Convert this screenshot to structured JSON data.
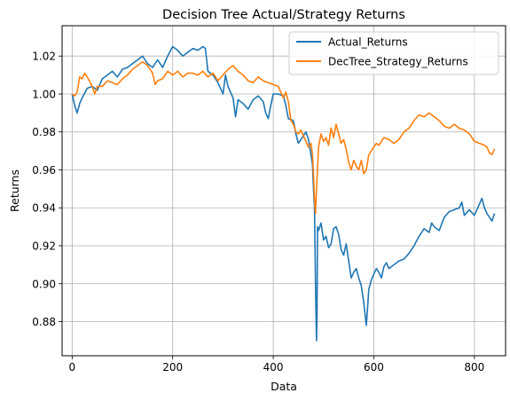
{
  "chart_data": {
    "type": "line",
    "title": "Decision Tree Actual/Strategy Returns",
    "xlabel": "Data",
    "ylabel": "Returns",
    "xlim": [
      -20,
      862
    ],
    "ylim": [
      0.862,
      1.036
    ],
    "xticks": [
      0,
      200,
      400,
      600,
      800
    ],
    "xtick_labels": [
      "0",
      "200",
      "400",
      "600",
      "800"
    ],
    "yticks": [
      0.88,
      0.9,
      0.92,
      0.94,
      0.96,
      0.98,
      1.0,
      1.02
    ],
    "ytick_labels": [
      "0.88",
      "0.90",
      "0.92",
      "0.94",
      "0.96",
      "0.98",
      "1.00",
      "1.02"
    ],
    "grid": true,
    "legend_position": "upper right",
    "series": [
      {
        "name": "Actual_Returns",
        "color": "#1f77b4",
        "points": [
          [
            0,
            1.0
          ],
          [
            5,
            0.994
          ],
          [
            10,
            0.99
          ],
          [
            15,
            0.995
          ],
          [
            20,
            0.998
          ],
          [
            30,
            1.003
          ],
          [
            40,
            1.004
          ],
          [
            50,
            1.002
          ],
          [
            60,
            1.008
          ],
          [
            70,
            1.01
          ],
          [
            80,
            1.012
          ],
          [
            90,
            1.009
          ],
          [
            100,
            1.013
          ],
          [
            110,
            1.014
          ],
          [
            120,
            1.016
          ],
          [
            130,
            1.018
          ],
          [
            140,
            1.02
          ],
          [
            150,
            1.016
          ],
          [
            160,
            1.014
          ],
          [
            170,
            1.018
          ],
          [
            180,
            1.014
          ],
          [
            190,
            1.02
          ],
          [
            200,
            1.025
          ],
          [
            210,
            1.023
          ],
          [
            220,
            1.02
          ],
          [
            230,
            1.022
          ],
          [
            240,
            1.024
          ],
          [
            250,
            1.023
          ],
          [
            260,
            1.025
          ],
          [
            265,
            1.024
          ],
          [
            270,
            1.012
          ],
          [
            280,
            1.01
          ],
          [
            290,
            1.006
          ],
          [
            300,
            1.0
          ],
          [
            305,
            1.01
          ],
          [
            310,
            1.004
          ],
          [
            320,
            0.998
          ],
          [
            325,
            0.988
          ],
          [
            330,
            0.997
          ],
          [
            340,
            0.995
          ],
          [
            350,
            0.992
          ],
          [
            360,
            0.997
          ],
          [
            370,
            0.999
          ],
          [
            380,
            0.996
          ],
          [
            385,
            0.99
          ],
          [
            390,
            0.987
          ],
          [
            395,
            0.994
          ],
          [
            400,
            1.0
          ],
          [
            410,
            1.0
          ],
          [
            420,
            0.999
          ],
          [
            425,
            0.994
          ],
          [
            430,
            0.987
          ],
          [
            440,
            0.986
          ],
          [
            445,
            0.979
          ],
          [
            450,
            0.974
          ],
          [
            460,
            0.978
          ],
          [
            465,
            0.98
          ],
          [
            470,
            0.976
          ],
          [
            475,
            0.968
          ],
          [
            478,
            0.963
          ],
          [
            480,
            0.95
          ],
          [
            482,
            0.94
          ],
          [
            484,
            0.9
          ],
          [
            486,
            0.87
          ],
          [
            487,
            0.882
          ],
          [
            488,
            0.93
          ],
          [
            490,
            0.928
          ],
          [
            495,
            0.932
          ],
          [
            500,
            0.923
          ],
          [
            505,
            0.925
          ],
          [
            510,
            0.919
          ],
          [
            515,
            0.921
          ],
          [
            520,
            0.929
          ],
          [
            525,
            0.93
          ],
          [
            530,
            0.926
          ],
          [
            535,
            0.918
          ],
          [
            540,
            0.915
          ],
          [
            545,
            0.921
          ],
          [
            550,
            0.912
          ],
          [
            555,
            0.903
          ],
          [
            560,
            0.906
          ],
          [
            565,
            0.908
          ],
          [
            570,
            0.903
          ],
          [
            575,
            0.899
          ],
          [
            580,
            0.89
          ],
          [
            583,
            0.883
          ],
          [
            585,
            0.878
          ],
          [
            587,
            0.885
          ],
          [
            590,
            0.897
          ],
          [
            595,
            0.902
          ],
          [
            600,
            0.905
          ],
          [
            605,
            0.908
          ],
          [
            610,
            0.906
          ],
          [
            615,
            0.903
          ],
          [
            620,
            0.909
          ],
          [
            625,
            0.911
          ],
          [
            630,
            0.908
          ],
          [
            640,
            0.91
          ],
          [
            650,
            0.912
          ],
          [
            660,
            0.913
          ],
          [
            670,
            0.916
          ],
          [
            680,
            0.92
          ],
          [
            690,
            0.925
          ],
          [
            700,
            0.929
          ],
          [
            710,
            0.927
          ],
          [
            715,
            0.932
          ],
          [
            720,
            0.93
          ],
          [
            730,
            0.928
          ],
          [
            740,
            0.935
          ],
          [
            750,
            0.938
          ],
          [
            760,
            0.939
          ],
          [
            770,
            0.94
          ],
          [
            775,
            0.943
          ],
          [
            780,
            0.936
          ],
          [
            790,
            0.939
          ],
          [
            800,
            0.936
          ],
          [
            810,
            0.942
          ],
          [
            815,
            0.945
          ],
          [
            820,
            0.94
          ],
          [
            825,
            0.937
          ],
          [
            830,
            0.935
          ],
          [
            835,
            0.933
          ],
          [
            840,
            0.937
          ]
        ]
      },
      {
        "name": "DecTree_Strategy_Returns",
        "color": "#ff7f0e",
        "points": [
          [
            0,
            1.0
          ],
          [
            5,
            0.999
          ],
          [
            10,
            1.001
          ],
          [
            15,
            1.009
          ],
          [
            20,
            1.008
          ],
          [
            25,
            1.011
          ],
          [
            30,
            1.009
          ],
          [
            40,
            1.004
          ],
          [
            45,
            1.0
          ],
          [
            50,
            1.004
          ],
          [
            60,
            1.004
          ],
          [
            70,
            1.007
          ],
          [
            80,
            1.006
          ],
          [
            90,
            1.005
          ],
          [
            100,
            1.008
          ],
          [
            110,
            1.01
          ],
          [
            120,
            1.013
          ],
          [
            130,
            1.015
          ],
          [
            140,
            1.017
          ],
          [
            150,
            1.015
          ],
          [
            160,
            1.011
          ],
          [
            165,
            1.005
          ],
          [
            170,
            1.007
          ],
          [
            180,
            1.008
          ],
          [
            190,
            1.012
          ],
          [
            200,
            1.01
          ],
          [
            210,
            1.012
          ],
          [
            220,
            1.009
          ],
          [
            230,
            1.011
          ],
          [
            240,
            1.011
          ],
          [
            250,
            1.01
          ],
          [
            260,
            1.012
          ],
          [
            270,
            1.009
          ],
          [
            280,
            1.011
          ],
          [
            290,
            1.007
          ],
          [
            300,
            1.01
          ],
          [
            310,
            1.013
          ],
          [
            320,
            1.015
          ],
          [
            330,
            1.012
          ],
          [
            340,
            1.01
          ],
          [
            350,
            1.007
          ],
          [
            360,
            1.006
          ],
          [
            370,
            1.009
          ],
          [
            380,
            1.007
          ],
          [
            390,
            1.006
          ],
          [
            400,
            1.005
          ],
          [
            410,
            1.004
          ],
          [
            420,
            0.998
          ],
          [
            425,
            1.001
          ],
          [
            430,
            0.996
          ],
          [
            435,
            0.986
          ],
          [
            440,
            0.984
          ],
          [
            445,
            0.98
          ],
          [
            450,
            0.979
          ],
          [
            455,
            0.981
          ],
          [
            460,
            0.978
          ],
          [
            465,
            0.975
          ],
          [
            470,
            0.972
          ],
          [
            475,
            0.974
          ],
          [
            478,
            0.968
          ],
          [
            480,
            0.958
          ],
          [
            482,
            0.945
          ],
          [
            484,
            0.937
          ],
          [
            486,
            0.95
          ],
          [
            488,
            0.96
          ],
          [
            490,
            0.972
          ],
          [
            495,
            0.979
          ],
          [
            500,
            0.975
          ],
          [
            505,
            0.977
          ],
          [
            510,
            0.973
          ],
          [
            515,
            0.982
          ],
          [
            520,
            0.977
          ],
          [
            525,
            0.984
          ],
          [
            530,
            0.979
          ],
          [
            535,
            0.974
          ],
          [
            540,
            0.976
          ],
          [
            545,
            0.971
          ],
          [
            550,
            0.964
          ],
          [
            555,
            0.96
          ],
          [
            560,
            0.965
          ],
          [
            565,
            0.962
          ],
          [
            570,
            0.96
          ],
          [
            575,
            0.965
          ],
          [
            580,
            0.958
          ],
          [
            585,
            0.96
          ],
          [
            590,
            0.968
          ],
          [
            595,
            0.97
          ],
          [
            600,
            0.972
          ],
          [
            605,
            0.974
          ],
          [
            610,
            0.973
          ],
          [
            615,
            0.975
          ],
          [
            620,
            0.977
          ],
          [
            630,
            0.976
          ],
          [
            640,
            0.974
          ],
          [
            650,
            0.976
          ],
          [
            660,
            0.98
          ],
          [
            670,
            0.982
          ],
          [
            680,
            0.986
          ],
          [
            690,
            0.989
          ],
          [
            700,
            0.988
          ],
          [
            710,
            0.99
          ],
          [
            720,
            0.988
          ],
          [
            730,
            0.986
          ],
          [
            740,
            0.983
          ],
          [
            750,
            0.982
          ],
          [
            760,
            0.984
          ],
          [
            770,
            0.982
          ],
          [
            780,
            0.981
          ],
          [
            790,
            0.979
          ],
          [
            800,
            0.975
          ],
          [
            810,
            0.974
          ],
          [
            820,
            0.973
          ],
          [
            825,
            0.972
          ],
          [
            830,
            0.969
          ],
          [
            835,
            0.968
          ],
          [
            840,
            0.971
          ]
        ]
      }
    ]
  }
}
